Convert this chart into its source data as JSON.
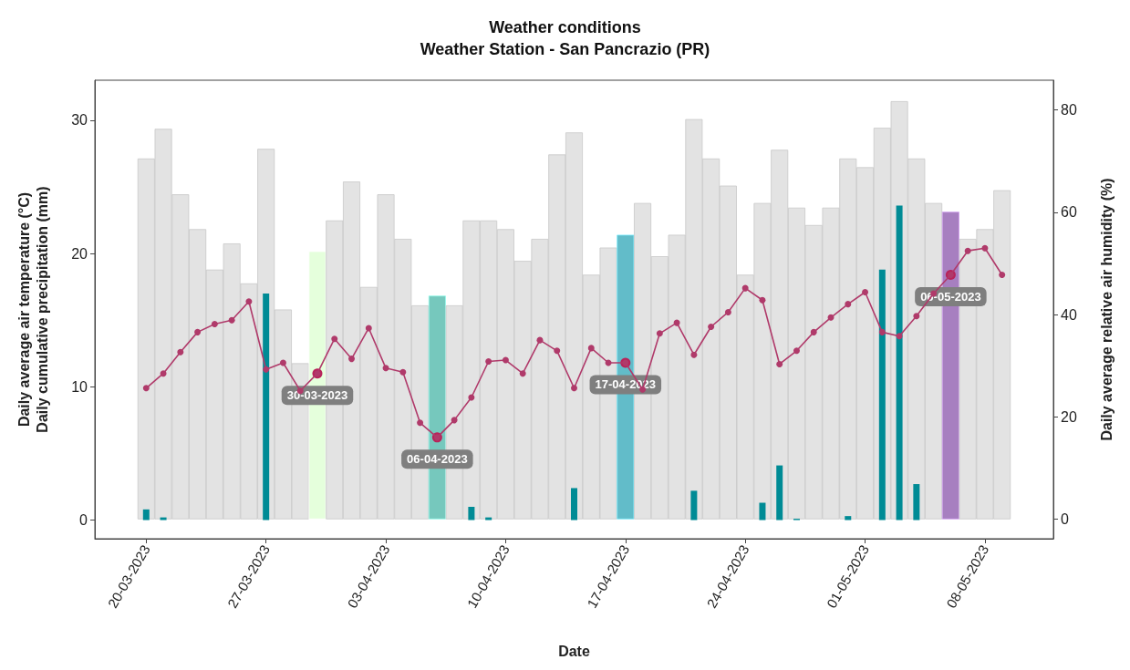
{
  "chart_data": {
    "type": "bar",
    "title": "Weather conditions",
    "subtitle": "Weather Station - San Pancrazio (PR)",
    "xlabel": "Date",
    "ylabel": "Daily average air temperature (°C)\nDaily cumulative precipitation (mm)",
    "y2label": "Daily average relative air humidity (%)",
    "x": [
      "2023-03-20",
      "2023-03-21",
      "2023-03-22",
      "2023-03-23",
      "2023-03-24",
      "2023-03-25",
      "2023-03-26",
      "2023-03-27",
      "2023-03-28",
      "2023-03-29",
      "2023-03-30",
      "2023-03-31",
      "2023-04-01",
      "2023-04-02",
      "2023-04-03",
      "2023-04-04",
      "2023-04-05",
      "2023-04-06",
      "2023-04-07",
      "2023-04-08",
      "2023-04-09",
      "2023-04-10",
      "2023-04-11",
      "2023-04-12",
      "2023-04-13",
      "2023-04-14",
      "2023-04-15",
      "2023-04-16",
      "2023-04-17",
      "2023-04-18",
      "2023-04-19",
      "2023-04-20",
      "2023-04-21",
      "2023-04-22",
      "2023-04-23",
      "2023-04-24",
      "2023-04-25",
      "2023-04-26",
      "2023-04-27",
      "2023-04-28",
      "2023-04-29",
      "2023-04-30",
      "2023-05-01",
      "2023-05-02",
      "2023-05-03",
      "2023-05-04",
      "2023-05-05",
      "2023-05-06",
      "2023-05-07",
      "2023-05-08",
      "2023-05-09"
    ],
    "series": [
      {
        "axis": "y2",
        "color": "#e3e3e3",
        "colors": [
          "#e3e3e3",
          "#e3e3e3",
          "#e3e3e3",
          "#e3e3e3",
          "#e3e3e3",
          "#e3e3e3",
          "#e3e3e3",
          "#e3e3e3",
          "#e3e3e3",
          "#e3e3e3",
          "#e5ffdc",
          "#e3e3e3",
          "#e3e3e3",
          "#e3e3e3",
          "#e3e3e3",
          "#e3e3e3",
          "#e3e3e3",
          "#76c8bd",
          "#e3e3e3",
          "#e3e3e3",
          "#e3e3e3",
          "#e3e3e3",
          "#e3e3e3",
          "#e3e3e3",
          "#e3e3e3",
          "#e3e3e3",
          "#e3e3e3",
          "#e3e3e3",
          "#62bcc9",
          "#e3e3e3",
          "#e3e3e3",
          "#e3e3e3",
          "#e3e3e3",
          "#e3e3e3",
          "#e3e3e3",
          "#e3e3e3",
          "#e3e3e3",
          "#e3e3e3",
          "#e3e3e3",
          "#e3e3e3",
          "#e3e3e3",
          "#e3e3e3",
          "#e3e3e3",
          "#e3e3e3",
          "#e3e3e3",
          "#e3e3e3",
          "#e3e3e3",
          "#a77fc0",
          "#e3e3e3",
          "#e3e3e3",
          "#e3e3e3"
        ],
        "values": [
          70.5,
          76.3,
          63.5,
          56.7,
          48.8,
          53.9,
          46.1,
          72.4,
          41,
          30.5,
          52.4,
          58.4,
          66,
          45.4,
          63.5,
          54.8,
          41.8,
          43.7,
          41.8,
          58.4,
          58.4,
          56.7,
          50.5,
          54.8,
          71.3,
          75.6,
          47.8,
          53.1,
          55.6,
          61.8,
          51.4,
          55.6,
          78.2,
          70.5,
          65.2,
          47.8,
          61.8,
          72.2,
          60.9,
          57.5,
          60.9,
          70.5,
          68.8,
          76.5,
          81.7,
          70.5,
          61.8,
          60.1,
          54.8,
          56.7,
          64.3
        ]
      },
      {
        "color": "#008b95",
        "values": [
          0.8,
          0.2,
          0,
          0,
          0,
          0,
          0,
          17,
          0,
          0,
          0,
          0,
          0,
          0,
          0,
          0,
          0,
          0,
          0,
          1,
          0.2,
          0,
          0,
          0,
          0,
          2.4,
          0,
          0,
          0,
          0,
          0,
          0,
          2.2,
          0,
          0,
          0,
          1.3,
          4.1,
          0.1,
          0,
          0,
          0.3,
          0,
          18.8,
          23.6,
          2.7,
          0,
          0,
          0,
          0,
          0
        ]
      },
      {
        "type": "line",
        "color": "#b03a6a",
        "marker": "circle",
        "line_style": "solid",
        "values": [
          9.9,
          11,
          12.6,
          14.1,
          14.7,
          15,
          16.4,
          11.3,
          11.8,
          9.7,
          11,
          13.6,
          12.1,
          14.4,
          11.4,
          11.1,
          7.3,
          6.2,
          7.5,
          9.2,
          11.9,
          12,
          11,
          13.5,
          12.7,
          9.9,
          12.9,
          11.8,
          11.8,
          9.8,
          14,
          14.8,
          12.4,
          14.5,
          15.6,
          17.4,
          16.5,
          11.7,
          12.7,
          14.1,
          15.2,
          16.2,
          17.1,
          14.1,
          13.8,
          15.3,
          17,
          18.4,
          20.2,
          20.4,
          18.4
        ]
      }
    ],
    "xlim": [
      "2023-03-17",
      "2023-05-12"
    ],
    "xticks": [
      {
        "value": "2023-03-20",
        "label": "20-03-2023"
      },
      {
        "value": "2023-03-27",
        "label": "27-03-2023"
      },
      {
        "value": "2023-04-03",
        "label": "03-04-2023"
      },
      {
        "value": "2023-04-10",
        "label": "10-04-2023"
      },
      {
        "value": "2023-04-17",
        "label": "17-04-2023"
      },
      {
        "value": "2023-04-24",
        "label": "24-04-2023"
      },
      {
        "value": "2023-05-01",
        "label": "01-05-2023"
      },
      {
        "value": "2023-05-08",
        "label": "08-05-2023"
      }
    ],
    "ylim": [
      -1.4,
      33
    ],
    "yticks": [
      0,
      10,
      20,
      30
    ],
    "y2lim": [
      -3.8,
      85.8
    ],
    "y2ticks": [
      0,
      20,
      40,
      60,
      80
    ],
    "annotations": [
      {
        "text": "30-03-2023",
        "x": "2023-03-30",
        "y": 11
      },
      {
        "text": "06-04-2023",
        "x": "2023-04-06",
        "y": 6.2
      },
      {
        "text": "17-04-2023",
        "x": "2023-04-17",
        "y": 11.8
      },
      {
        "text": "06-05-2023",
        "x": "2023-05-06",
        "y": 18.4
      }
    ],
    "grid": false
  }
}
